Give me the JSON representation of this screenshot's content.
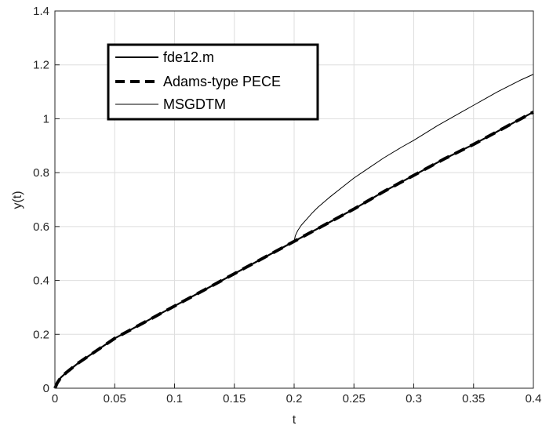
{
  "chart_data": {
    "type": "line",
    "title": "",
    "xlabel": "t",
    "ylabel": "y(t)",
    "xlim": [
      0,
      0.4
    ],
    "ylim": [
      0,
      1.4
    ],
    "xticks": [
      0,
      0.05,
      0.1,
      0.15,
      0.2,
      0.25,
      0.3,
      0.35,
      0.4
    ],
    "xtick_labels": [
      "0",
      "0.05",
      "0.1",
      "0.15",
      "0.2",
      "0.25",
      "0.3",
      "0.35",
      "0.4"
    ],
    "yticks": [
      0,
      0.2,
      0.4,
      0.6,
      0.8,
      1.0,
      1.2,
      1.4
    ],
    "ytick_labels": [
      "0",
      "0.2",
      "0.4",
      "0.6",
      "0.8",
      "1",
      "1.2",
      "1.4"
    ],
    "grid": true,
    "legend_position": "top-left",
    "series": [
      {
        "name": "fde12.m",
        "style": "solid-thick",
        "color": "#000000",
        "x": [
          0,
          0.002,
          0.005,
          0.01,
          0.02,
          0.03,
          0.05,
          0.075,
          0.1,
          0.125,
          0.15,
          0.175,
          0.2,
          0.225,
          0.25,
          0.275,
          0.3,
          0.325,
          0.35,
          0.375,
          0.4
        ],
        "y": [
          0,
          0.02,
          0.04,
          0.06,
          0.095,
          0.125,
          0.185,
          0.245,
          0.305,
          0.365,
          0.425,
          0.485,
          0.545,
          0.605,
          0.665,
          0.73,
          0.79,
          0.85,
          0.905,
          0.965,
          1.025
        ]
      },
      {
        "name": "Adams-type PECE",
        "style": "dashed-thick",
        "color": "#000000",
        "x": [
          0,
          0.002,
          0.005,
          0.01,
          0.02,
          0.03,
          0.05,
          0.075,
          0.1,
          0.125,
          0.15,
          0.175,
          0.2,
          0.225,
          0.25,
          0.275,
          0.3,
          0.325,
          0.35,
          0.375,
          0.4
        ],
        "y": [
          0,
          0.02,
          0.04,
          0.06,
          0.095,
          0.125,
          0.185,
          0.245,
          0.305,
          0.365,
          0.425,
          0.485,
          0.545,
          0.605,
          0.665,
          0.73,
          0.79,
          0.85,
          0.905,
          0.965,
          1.025
        ]
      },
      {
        "name": "MSGDTM",
        "style": "solid-thin",
        "color": "#000000",
        "x": [
          0,
          0.002,
          0.005,
          0.01,
          0.02,
          0.03,
          0.05,
          0.075,
          0.1,
          0.125,
          0.15,
          0.175,
          0.2,
          0.201,
          0.203,
          0.206,
          0.21,
          0.215,
          0.22,
          0.23,
          0.24,
          0.25,
          0.26,
          0.275,
          0.29,
          0.3,
          0.32,
          0.34,
          0.35,
          0.37,
          0.39,
          0.4
        ],
        "y": [
          0,
          0.02,
          0.04,
          0.06,
          0.095,
          0.125,
          0.185,
          0.245,
          0.305,
          0.365,
          0.425,
          0.485,
          0.545,
          0.566,
          0.585,
          0.605,
          0.625,
          0.65,
          0.672,
          0.71,
          0.745,
          0.78,
          0.81,
          0.855,
          0.895,
          0.92,
          0.975,
          1.025,
          1.05,
          1.1,
          1.145,
          1.165
        ]
      }
    ]
  }
}
